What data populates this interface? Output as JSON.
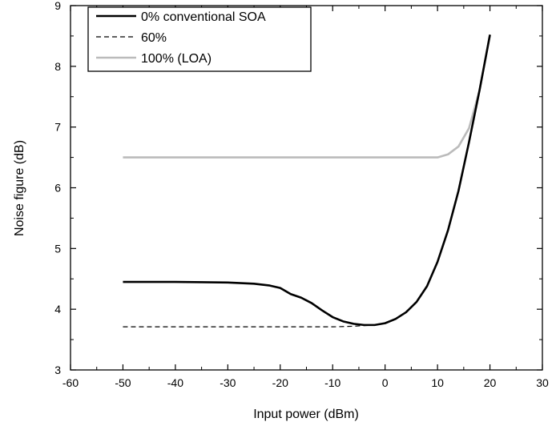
{
  "chart_data": {
    "type": "line",
    "title": "",
    "xlabel": "Input power (dBm)",
    "ylabel": "Noise figure (dB)",
    "xlim": [
      -60,
      30
    ],
    "ylim": [
      3,
      9
    ],
    "xticks": [
      -60,
      -50,
      -40,
      -30,
      -20,
      -10,
      0,
      10,
      20,
      30
    ],
    "yticks": [
      3,
      4,
      5,
      6,
      7,
      8,
      9
    ],
    "grid": false,
    "legend_position": "top-left",
    "series": [
      {
        "name": "0% conventional SOA",
        "color": "#000000",
        "style": "solid",
        "x": [
          -50,
          -40,
          -30,
          -25,
          -22,
          -20,
          -18,
          -16,
          -14,
          -12,
          -10,
          -8,
          -6,
          -4,
          -2,
          0,
          2,
          4,
          6,
          8,
          10,
          12,
          14,
          16,
          18,
          20
        ],
        "y": [
          4.45,
          4.45,
          4.44,
          4.42,
          4.39,
          4.35,
          4.25,
          4.19,
          4.1,
          3.98,
          3.87,
          3.8,
          3.76,
          3.74,
          3.74,
          3.77,
          3.84,
          3.95,
          4.12,
          4.38,
          4.78,
          5.3,
          5.95,
          6.75,
          7.6,
          8.52
        ]
      },
      {
        "name": "60%",
        "color": "#000000",
        "style": "dashed",
        "x": [
          -50,
          -40,
          -30,
          -20,
          -10,
          -6,
          -4,
          -2,
          0,
          2,
          4,
          6,
          8,
          10,
          12,
          14,
          16,
          18,
          20
        ],
        "y": [
          3.71,
          3.71,
          3.71,
          3.71,
          3.71,
          3.72,
          3.73,
          3.74,
          3.77,
          3.84,
          3.95,
          4.12,
          4.38,
          4.78,
          5.3,
          5.95,
          6.75,
          7.6,
          8.52
        ]
      },
      {
        "name": "100% (LOA)",
        "color": "#bbbbbb",
        "style": "solid",
        "x": [
          -50,
          -40,
          -30,
          -20,
          -10,
          0,
          5,
          10,
          12,
          14,
          16,
          18,
          20
        ],
        "y": [
          6.5,
          6.5,
          6.5,
          6.5,
          6.5,
          6.5,
          6.5,
          6.5,
          6.55,
          6.68,
          6.98,
          7.6,
          8.52
        ]
      }
    ]
  }
}
